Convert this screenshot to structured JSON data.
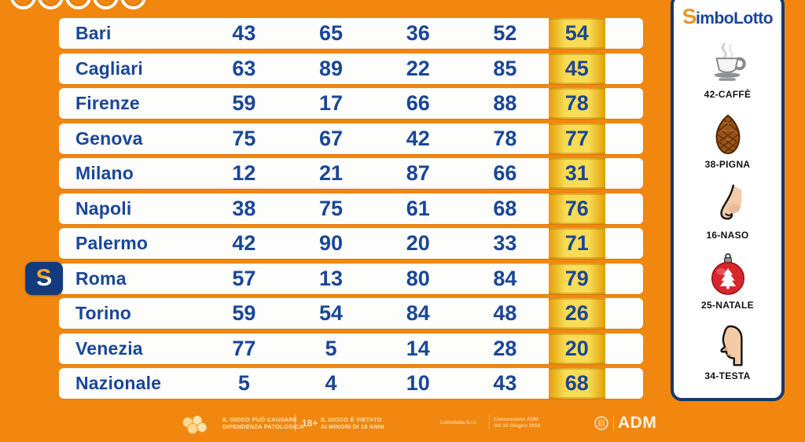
{
  "colors": {
    "background_orange": "#F1870E",
    "text_navy": "#1A4697",
    "highlight_yellow": "#F8DC55",
    "sidebar_border_navy": "#16386F",
    "badge_navy": "#123B7C",
    "ornament_red": "#D7262C",
    "footer_text": "#FFE9CB"
  },
  "table": {
    "rows": [
      {
        "name": "Bari",
        "numbers": [
          "43",
          "65",
          "36",
          "52"
        ],
        "fifth": "54",
        "special": false
      },
      {
        "name": "Cagliari",
        "numbers": [
          "63",
          "89",
          "22",
          "85"
        ],
        "fifth": "45",
        "special": false
      },
      {
        "name": "Firenze",
        "numbers": [
          "59",
          "17",
          "66",
          "88"
        ],
        "fifth": "78",
        "special": false
      },
      {
        "name": "Genova",
        "numbers": [
          "75",
          "67",
          "42",
          "78"
        ],
        "fifth": "77",
        "special": false
      },
      {
        "name": "Milano",
        "numbers": [
          "12",
          "21",
          "87",
          "66"
        ],
        "fifth": "31",
        "special": false
      },
      {
        "name": "Napoli",
        "numbers": [
          "38",
          "75",
          "61",
          "68"
        ],
        "fifth": "76",
        "special": false
      },
      {
        "name": "Palermo",
        "numbers": [
          "42",
          "90",
          "20",
          "33"
        ],
        "fifth": "71",
        "special": false
      },
      {
        "name": "Roma",
        "numbers": [
          "57",
          "13",
          "80",
          "84"
        ],
        "fifth": "79",
        "special": true
      },
      {
        "name": "Torino",
        "numbers": [
          "59",
          "54",
          "84",
          "48"
        ],
        "fifth": "26",
        "special": false
      },
      {
        "name": "Venezia",
        "numbers": [
          "77",
          "5",
          "14",
          "28"
        ],
        "fifth": "20",
        "special": false
      },
      {
        "name": "Nazionale",
        "numbers": [
          "5",
          "4",
          "10",
          "43"
        ],
        "fifth": "68",
        "special": false
      }
    ]
  },
  "roma_badge": {
    "letter": "S"
  },
  "sidebar": {
    "logo": {
      "initial": "S",
      "rest": "imboLotto"
    },
    "symbols": [
      {
        "label": "42-CAFFÈ",
        "icon": "coffee-icon"
      },
      {
        "label": "38-PIGNA",
        "icon": "pinecone-icon"
      },
      {
        "label": "16-NASO",
        "icon": "nose-icon"
      },
      {
        "label": "25-NATALE",
        "icon": "christmas-ball-icon"
      },
      {
        "label": "34-TESTA",
        "icon": "head-icon"
      }
    ]
  },
  "footer": {
    "warning1_line1": "IL GIOCO PUÒ CAUSARE",
    "warning1_line2": "DIPENDENZA PATOLOGICA",
    "age_badge": "18+",
    "warning2_line1": "IL GIOCO È VIETATO",
    "warning2_line2": "AI MINORI DI 18 ANNI",
    "company": "Lottoitalia S.r.l.",
    "concession_line1": "Concessione ADM",
    "concession_line2": "del 10 Giugno 2016",
    "adm_label": "ADM"
  }
}
